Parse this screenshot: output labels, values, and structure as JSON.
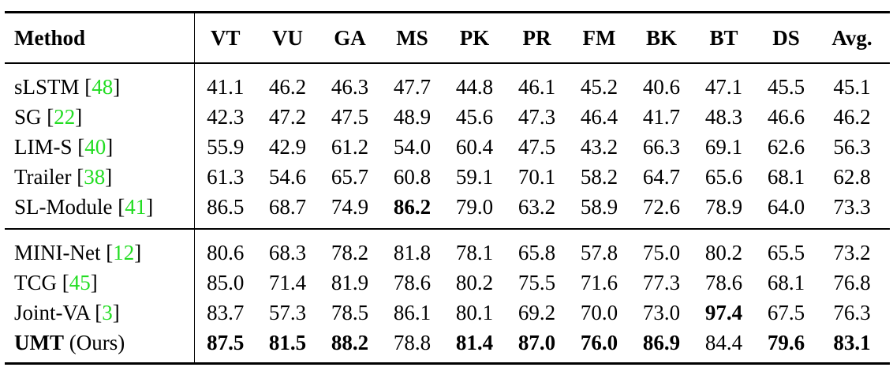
{
  "table": {
    "headers": [
      "Method",
      "VT",
      "VU",
      "GA",
      "MS",
      "PK",
      "PR",
      "FM",
      "BK",
      "BT",
      "DS",
      "Avg."
    ],
    "groups": [
      [
        {
          "name": "sLSTM",
          "cite": "48",
          "values": [
            "41.1",
            "46.2",
            "46.3",
            "47.7",
            "44.8",
            "46.1",
            "45.2",
            "40.6",
            "47.1",
            "45.5",
            "45.1"
          ],
          "bold": []
        },
        {
          "name": "SG",
          "cite": "22",
          "values": [
            "42.3",
            "47.2",
            "47.5",
            "48.9",
            "45.6",
            "47.3",
            "46.4",
            "41.7",
            "48.3",
            "46.6",
            "46.2"
          ],
          "bold": []
        },
        {
          "name": "LIM-S",
          "cite": "40",
          "values": [
            "55.9",
            "42.9",
            "61.2",
            "54.0",
            "60.4",
            "47.5",
            "43.2",
            "66.3",
            "69.1",
            "62.6",
            "56.3"
          ],
          "bold": []
        },
        {
          "name": "Trailer",
          "cite": "38",
          "values": [
            "61.3",
            "54.6",
            "65.7",
            "60.8",
            "59.1",
            "70.1",
            "58.2",
            "64.7",
            "65.6",
            "68.1",
            "62.8"
          ],
          "bold": []
        },
        {
          "name": "SL-Module",
          "cite": "41",
          "values": [
            "86.5",
            "68.7",
            "74.9",
            "86.2",
            "79.0",
            "63.2",
            "58.9",
            "72.6",
            "78.9",
            "64.0",
            "73.3"
          ],
          "bold": [
            3
          ]
        }
      ],
      [
        {
          "name": "MINI-Net",
          "cite": "12",
          "values": [
            "80.6",
            "68.3",
            "78.2",
            "81.8",
            "78.1",
            "65.8",
            "57.8",
            "75.0",
            "80.2",
            "65.5",
            "73.2"
          ],
          "bold": []
        },
        {
          "name": "TCG",
          "cite": "45",
          "values": [
            "85.0",
            "71.4",
            "81.9",
            "78.6",
            "80.2",
            "75.5",
            "71.6",
            "77.3",
            "78.6",
            "68.1",
            "76.8"
          ],
          "bold": []
        },
        {
          "name": "Joint-VA",
          "cite": "3",
          "values": [
            "83.7",
            "57.3",
            "78.5",
            "86.1",
            "80.1",
            "69.2",
            "70.0",
            "73.0",
            "97.4",
            "67.5",
            "76.3"
          ],
          "bold": [
            8
          ]
        },
        {
          "name": "UMT",
          "suffix": "(Ours)",
          "name_bold": true,
          "values": [
            "87.5",
            "81.5",
            "88.2",
            "78.8",
            "81.4",
            "87.0",
            "76.0",
            "86.9",
            "84.4",
            "79.6",
            "83.1"
          ],
          "bold": [
            0,
            1,
            2,
            4,
            5,
            6,
            7,
            9,
            10
          ]
        }
      ]
    ]
  }
}
